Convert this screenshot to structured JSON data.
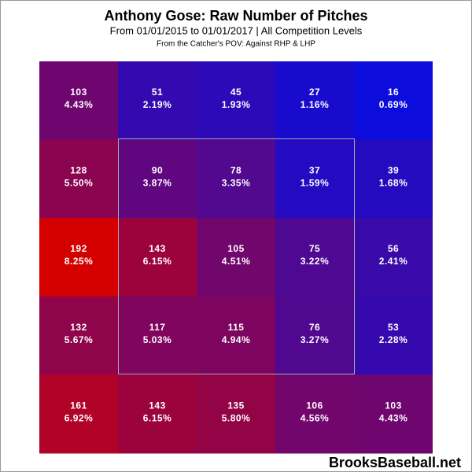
{
  "chart_data": {
    "type": "heatmap",
    "title": "Anthony Gose: Raw Number of Pitches",
    "subtitle": "From 01/01/2015 to 01/01/2017 | All Competition Levels",
    "note": "From the Catcher's POV:  Against RHP & LHP",
    "brand": "BrooksBaseball.net",
    "counts": [
      [
        103,
        51,
        45,
        27,
        16
      ],
      [
        128,
        90,
        78,
        37,
        39
      ],
      [
        192,
        143,
        105,
        75,
        56
      ],
      [
        132,
        117,
        115,
        76,
        53
      ],
      [
        161,
        143,
        135,
        106,
        103
      ]
    ],
    "percents": [
      [
        4.43,
        2.19,
        1.93,
        1.16,
        0.69
      ],
      [
        5.5,
        3.87,
        3.35,
        1.59,
        1.68
      ],
      [
        8.25,
        6.15,
        4.51,
        3.22,
        2.41
      ],
      [
        5.67,
        5.03,
        4.94,
        3.27,
        2.28
      ],
      [
        6.92,
        6.15,
        5.8,
        4.56,
        4.43
      ]
    ],
    "percent_labels": [
      [
        "4.43%",
        "2.19%",
        "1.93%",
        "1.16%",
        "0.69%"
      ],
      [
        "5.50%",
        "3.87%",
        "3.35%",
        "1.59%",
        "1.68%"
      ],
      [
        "8.25%",
        "6.15%",
        "4.51%",
        "3.22%",
        "2.41%"
      ],
      [
        "5.67%",
        "5.03%",
        "4.94%",
        "3.27%",
        "2.28%"
      ],
      [
        "6.92%",
        "6.15%",
        "5.80%",
        "4.56%",
        "4.43%"
      ]
    ],
    "low_color": "#0c0cdc",
    "high_color": "#d40000"
  }
}
